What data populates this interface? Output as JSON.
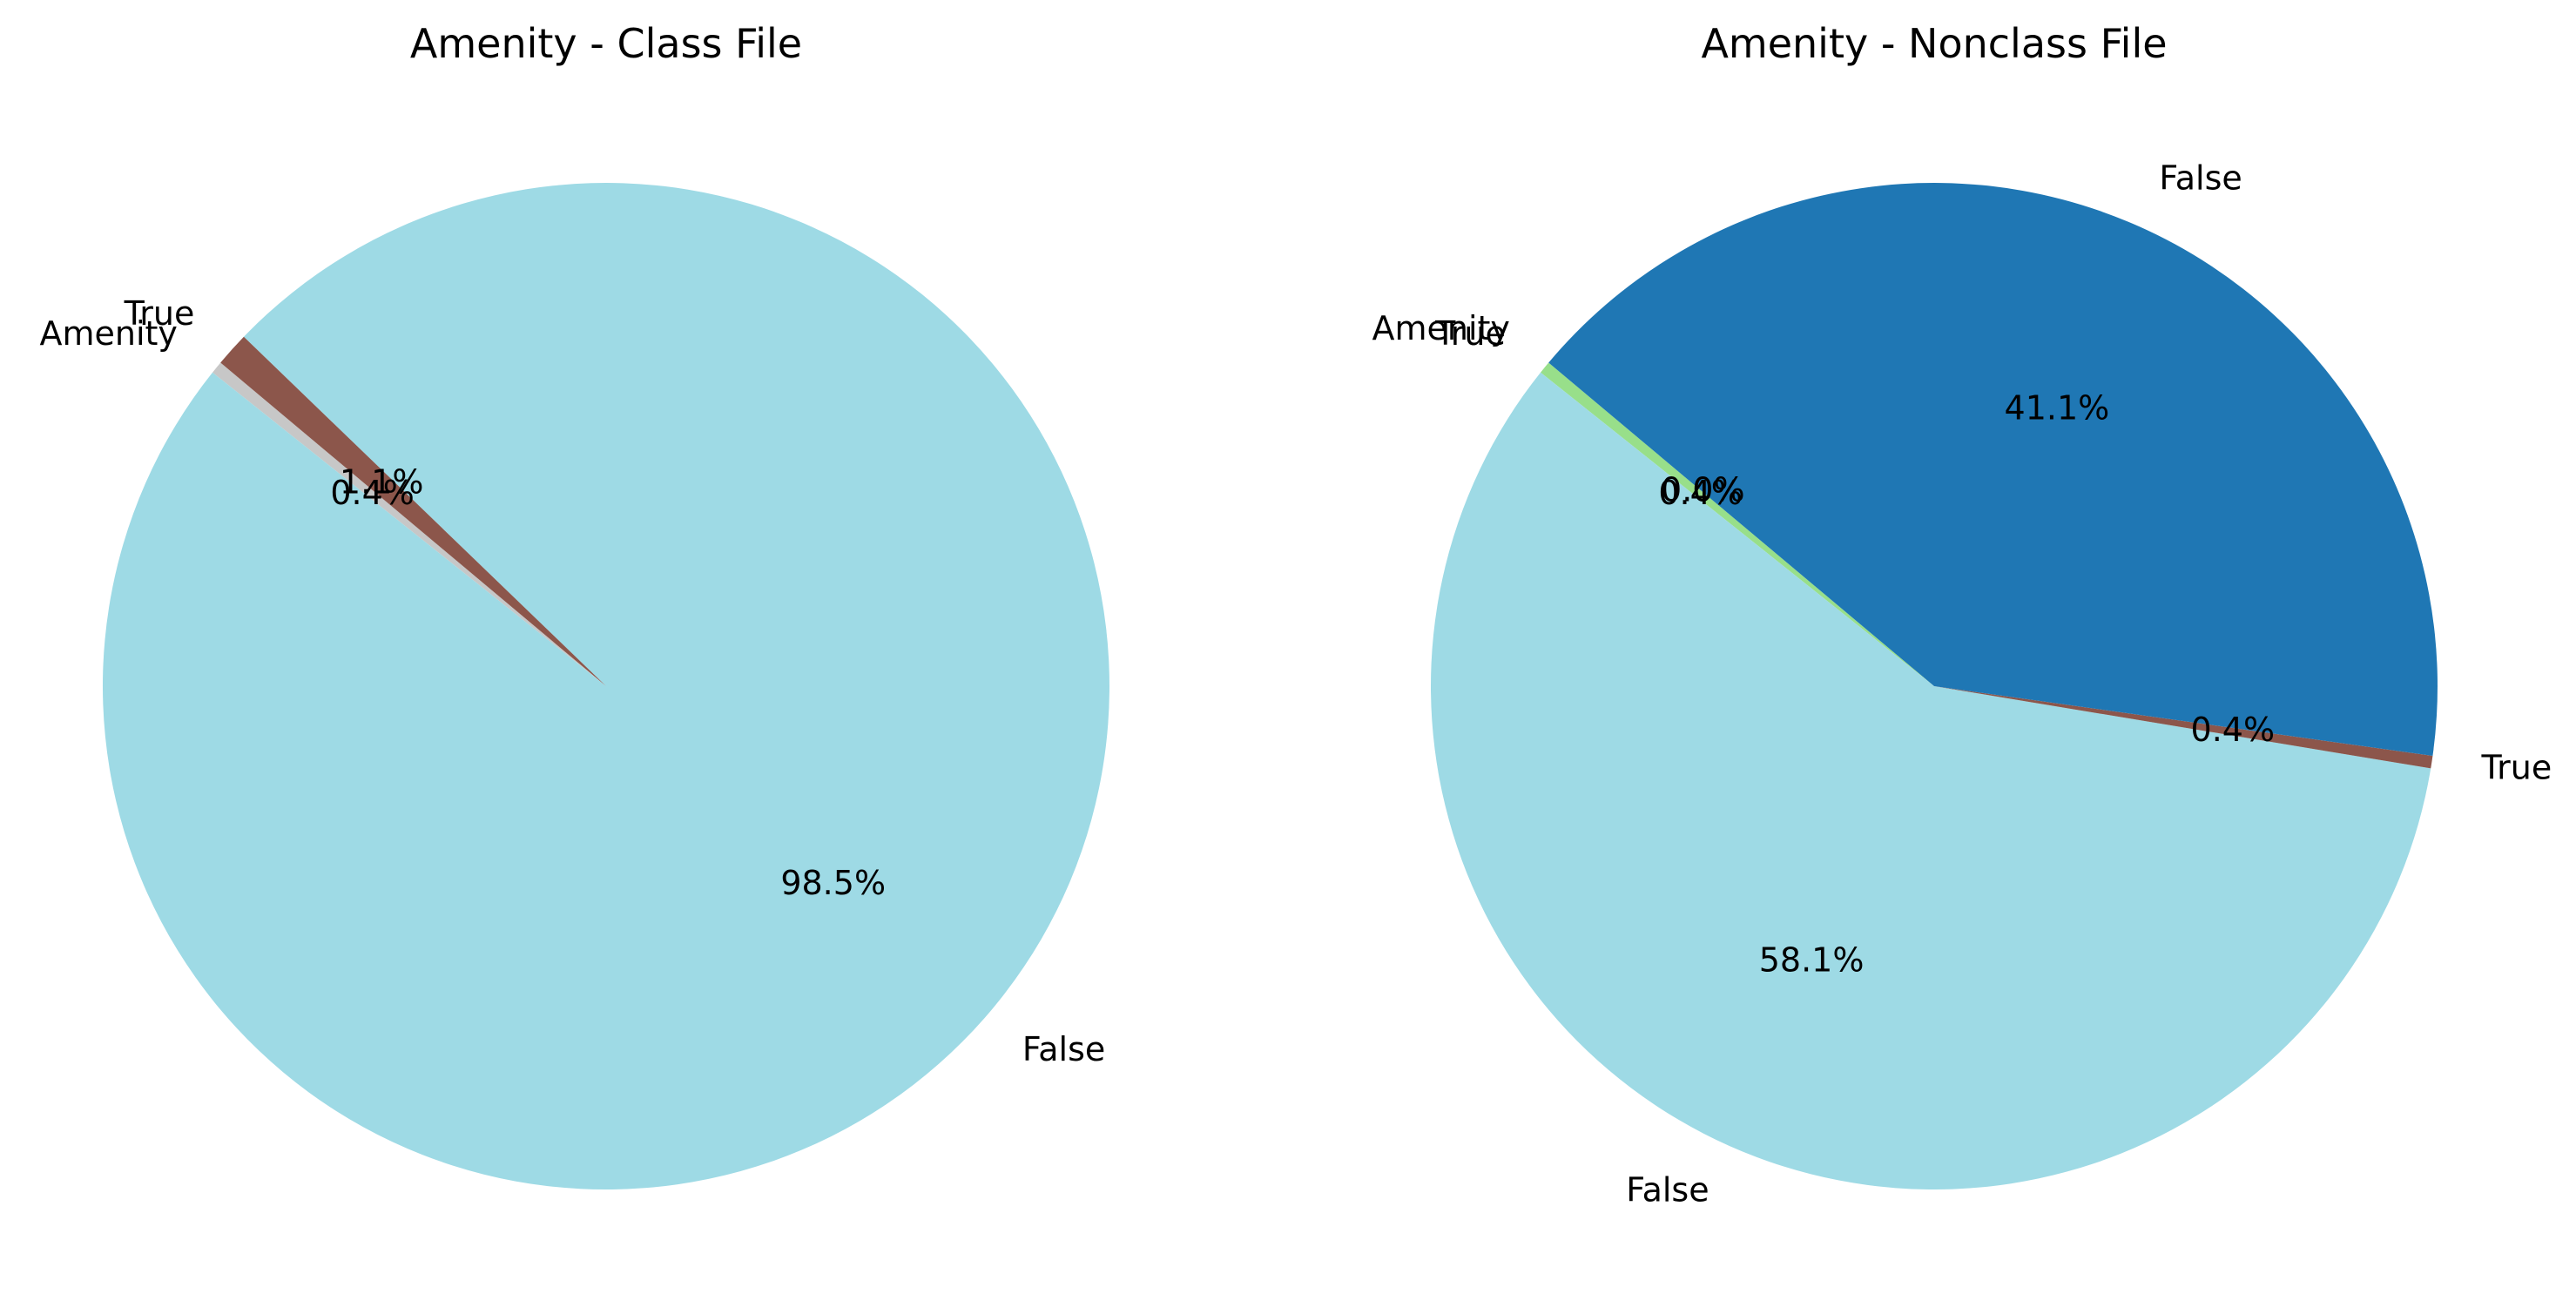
{
  "chart_data": [
    {
      "type": "pie",
      "title": "Amenity - Class File",
      "start_angle_deg": 140,
      "direction": "counterclockwise",
      "slices": [
        {
          "label": "Amenity",
          "value": 0.4,
          "pct_text": "0.4%",
          "color": "#c7c7c7"
        },
        {
          "label": "False",
          "value": 98.5,
          "pct_text": "98.5%",
          "color": "#9edae5"
        },
        {
          "label": "True",
          "value": 1.1,
          "pct_text": "1.1%",
          "color": "#8c564b"
        }
      ]
    },
    {
      "type": "pie",
      "title": "Amenity - Nonclass File",
      "start_angle_deg": 140,
      "direction": "counterclockwise",
      "slices": [
        {
          "label": "Amenity",
          "value": 0.0,
          "pct_text": "0.0%",
          "color": "#c7c7c7"
        },
        {
          "label": "True",
          "value": 0.4,
          "pct_text": "0.4%",
          "color": "#98df8a"
        },
        {
          "label": "False",
          "value": 58.1,
          "pct_text": "58.1%",
          "color": "#9edae5"
        },
        {
          "label": "True",
          "value": 0.4,
          "pct_text": "0.4%",
          "color": "#8c564b"
        },
        {
          "label": "False",
          "value": 41.1,
          "pct_text": "41.1%",
          "color": "#1f77b4"
        }
      ]
    }
  ]
}
